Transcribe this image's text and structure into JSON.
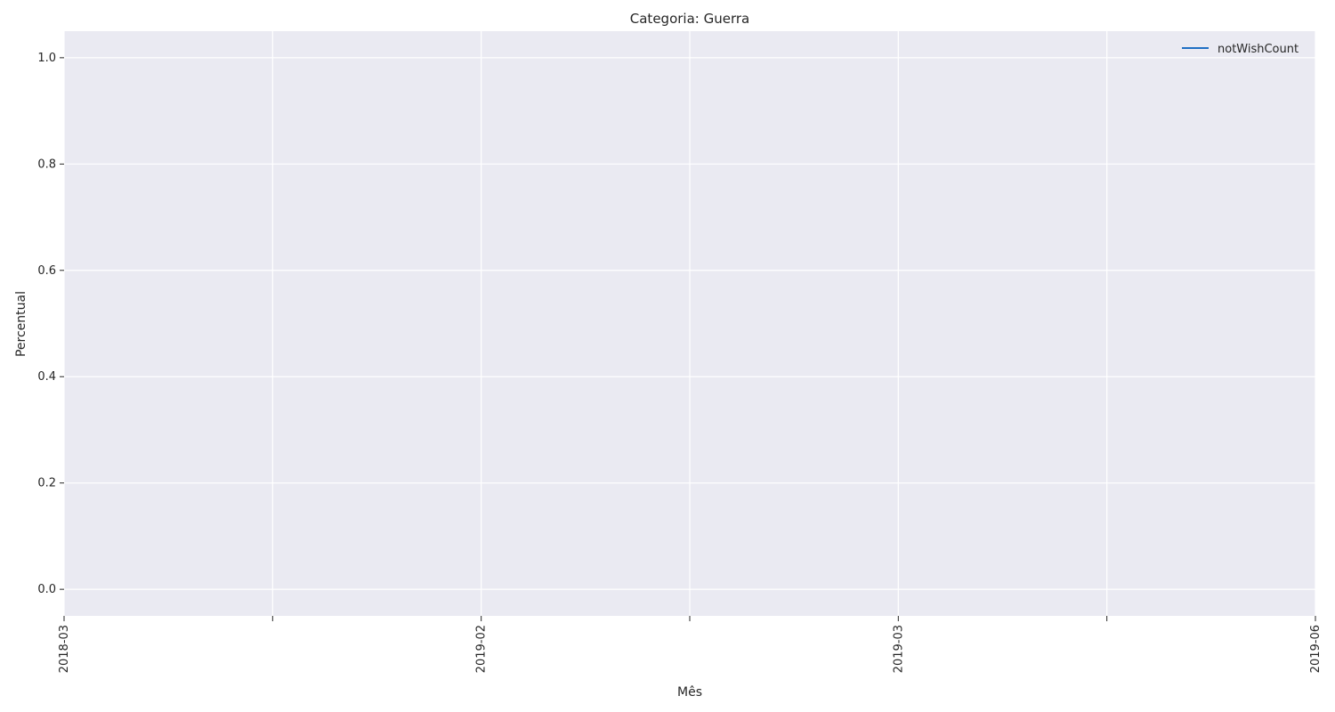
{
  "chart_data": {
    "type": "line",
    "title": "Categoria: Guerra",
    "xlabel": "Mês",
    "ylabel": "Percentual",
    "x_ticks": [
      "2018-03",
      "",
      "2019-02",
      "",
      "2019-03",
      "",
      "2019-06"
    ],
    "y_ticks": [
      "0.0",
      "0.2",
      "0.4",
      "0.6",
      "0.8",
      "1.0"
    ],
    "y_tick_values": [
      0.0,
      0.2,
      0.4,
      0.6,
      0.8,
      1.0
    ],
    "ylim": [
      -0.05,
      1.05
    ],
    "grid": true,
    "legend_position": "top-right",
    "series": [
      {
        "name": "notWishCount",
        "color": "#1f6fc4",
        "x": [],
        "y": []
      }
    ],
    "colors": {
      "plot_background": "#eaeaf2",
      "grid": "#ffffff"
    }
  }
}
